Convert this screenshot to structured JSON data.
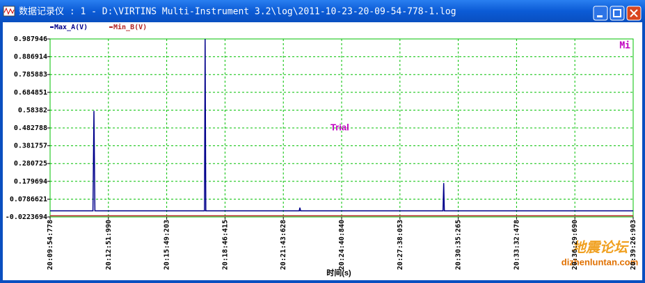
{
  "window_title": "数据记录仪 : 1 - D:\\VIRTINS Multi-Instrument 3.2\\log\\2011-10-23-20-09-54-778-1.log",
  "chart_data": {
    "type": "line",
    "x_label": "时间(s)",
    "annotation": "Trial",
    "logo": "Mi",
    "watermark": [
      "地震论坛",
      "dizhenluntan.com"
    ],
    "x": [
      "20:09:54:778",
      "20:12:05:000",
      "20:12:08:000",
      "20:12:11:000",
      "20:17:44:000",
      "20:17:46:000",
      "20:17:48:000",
      "20:22:32:000",
      "20:22:34:000",
      "20:22:36:000",
      "20:29:49:000",
      "20:29:51:000",
      "20:29:53:000",
      "20:39:26:903"
    ],
    "xlim": [
      "20:09:54:778",
      "20:39:26:903"
    ],
    "xticks": [
      "20:09:54:778",
      "20:12:51:990",
      "20:15:49:203",
      "20:18:46:415",
      "20:21:43:628",
      "20:24:40:840",
      "20:27:38:053",
      "20:30:35:265",
      "20:33:32:478",
      "20:36:29:690",
      "20:39:26:903"
    ],
    "ylim": [
      -0.0223694,
      0.987946
    ],
    "yticks": [
      -0.0223694,
      0.0786621,
      0.179694,
      0.280725,
      0.381757,
      0.482788,
      0.58382,
      0.684851,
      0.785883,
      0.886914,
      0.987946
    ],
    "grid": true,
    "series": [
      {
        "name": "Max_A(V)",
        "color": "#00008b",
        "values": [
          0.012,
          0.012,
          0.58,
          0.012,
          0.012,
          0.987946,
          0.012,
          0.012,
          0.03,
          0.012,
          0.012,
          0.17,
          0.012,
          0.012
        ]
      },
      {
        "name": "Min_B(V)",
        "color": "#b22222",
        "values": [
          -0.016,
          -0.016,
          -0.016,
          -0.016,
          -0.016,
          -0.016,
          -0.016,
          -0.016,
          -0.016,
          -0.016,
          -0.016,
          -0.016,
          -0.016,
          -0.016
        ]
      }
    ]
  }
}
